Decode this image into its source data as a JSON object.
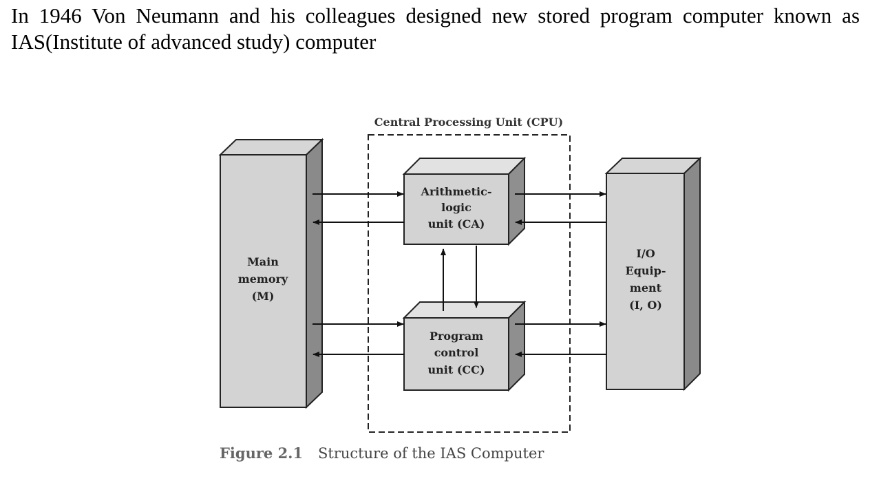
{
  "paragraph": {
    "line1": "In 1946 Von Neumann and his colleagues designed new stored program computer",
    "line2": "known as IAS(Institute of advanced study) computer"
  },
  "figure": {
    "cpu_label": "Central Processing Unit (CPU)",
    "main_memory": {
      "line1": "Main",
      "line2": "memory",
      "line3": "(M)"
    },
    "alu": {
      "line1": "Arithmetic-",
      "line2": "logic",
      "line3": "unit (CA)"
    },
    "pcu": {
      "line1": "Program",
      "line2": "control",
      "line3": "unit (CC)"
    },
    "io": {
      "line1": "I/O",
      "line2": "Equip-",
      "line3": "ment",
      "line4": "(I, O)"
    },
    "caption_number": "Figure 2.1",
    "caption_text": "Structure of the IAS Computer"
  }
}
